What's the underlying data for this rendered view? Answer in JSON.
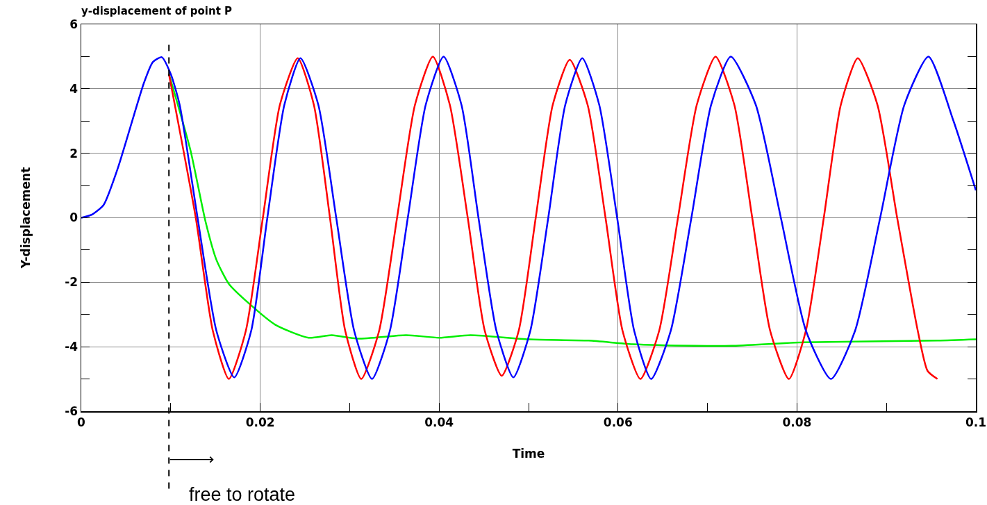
{
  "chart_data": {
    "type": "line",
    "title": "y-displacement of point P",
    "xlabel": "Time",
    "ylabel": "Y-displacement",
    "xlim": [
      0,
      0.1
    ],
    "ylim": [
      -6,
      6
    ],
    "xticks": [
      0,
      {
        "value": 0.01,
        "label": null
      },
      0.02,
      {
        "value": 0.03,
        "label": null
      },
      0.04,
      {
        "value": 0.05,
        "label": null
      },
      0.06,
      {
        "value": 0.07,
        "label": null
      },
      0.08,
      {
        "value": 0.09,
        "label": null
      },
      0.1
    ],
    "yticks": [
      -6,
      {
        "value": -5,
        "label": null
      },
      -4,
      {
        "value": -3,
        "label": null
      },
      -2,
      {
        "value": -1,
        "label": null
      },
      0,
      {
        "value": 1,
        "label": null
      },
      2,
      {
        "value": 3,
        "label": null
      },
      4,
      {
        "value": 5,
        "label": null
      },
      6
    ],
    "grid": true,
    "marker": "none",
    "line_style": "solid",
    "series": [
      {
        "color": "#00ee00",
        "x": [
          0.0098,
          0.0122,
          0.0139,
          0.0151,
          0.0165,
          0.0188,
          0.0217,
          0.0254,
          0.028,
          0.0309,
          0.0363,
          0.04,
          0.0435,
          0.05,
          0.0567,
          0.0616,
          0.0686,
          0.0727,
          0.0808,
          0.0957,
          0.1
        ],
        "values": [
          4.46,
          2.1,
          -0.13,
          -1.3,
          -2.05,
          -2.67,
          -3.32,
          -3.72,
          -3.64,
          -3.75,
          -3.64,
          -3.72,
          -3.64,
          -3.77,
          -3.81,
          -3.92,
          -3.97,
          -3.97,
          -3.86,
          -3.81,
          -3.77
        ]
      },
      {
        "color": "#ff0000",
        "x": [
          0.0098,
          0.0128,
          0.0147,
          0.0165,
          0.0184,
          0.0203,
          0.0222,
          0.0242,
          0.026,
          0.0278,
          0.0295,
          0.0313,
          0.0333,
          0.0353,
          0.0373,
          0.0393,
          0.0412,
          0.0432,
          0.0451,
          0.047,
          0.0489,
          0.0508,
          0.0527,
          0.0546,
          0.0566,
          0.0586,
          0.0605,
          0.0625,
          0.0646,
          0.0667,
          0.0688,
          0.0709,
          0.073,
          0.075,
          0.077,
          0.0791,
          0.081,
          0.083,
          0.0849,
          0.0868,
          0.089,
          0.0912,
          0.0935,
          0.0946,
          0.0957
        ],
        "values": [
          4.46,
          0,
          -3.5,
          -5,
          -3.5,
          0,
          3.5,
          4.95,
          3.5,
          0,
          -3.5,
          -5,
          -3.5,
          0,
          3.5,
          5,
          3.5,
          0,
          -3.5,
          -4.9,
          -3.5,
          0,
          3.5,
          4.9,
          3.5,
          0,
          -3.5,
          -5,
          -3.5,
          0,
          3.5,
          5,
          3.5,
          0,
          -3.5,
          -5,
          -3.5,
          0,
          3.5,
          4.95,
          3.5,
          0,
          -3.5,
          -4.75,
          -5
        ]
      },
      {
        "color": "#0000ff",
        "x": [
          0,
          0.0012,
          0.0025,
          0.0041,
          0.007,
          0.008,
          0.009,
          0.01,
          0.011,
          0.013,
          0.0151,
          0.0171,
          0.019,
          0.0208,
          0.0227,
          0.0245,
          0.0265,
          0.0285,
          0.0305,
          0.0325,
          0.0345,
          0.0365,
          0.0385,
          0.0405,
          0.0425,
          0.0444,
          0.0464,
          0.0483,
          0.0502,
          0.0522,
          0.0541,
          0.056,
          0.0579,
          0.0599,
          0.0618,
          0.0637,
          0.0659,
          0.0682,
          0.0704,
          0.0726,
          0.0754,
          0.0782,
          0.081,
          0.0838,
          0.0865,
          0.0893,
          0.092,
          0.0947,
          0.0975,
          0.1
        ],
        "values": [
          0,
          0.1,
          0.4,
          1.55,
          4.18,
          4.83,
          4.98,
          4.46,
          3.5,
          0,
          -3.5,
          -4.95,
          -3.5,
          0,
          3.5,
          4.95,
          3.5,
          0,
          -3.5,
          -5,
          -3.5,
          0,
          3.5,
          5,
          3.5,
          0,
          -3.5,
          -4.95,
          -3.5,
          0,
          3.5,
          4.95,
          3.5,
          0,
          -3.5,
          -5,
          -3.5,
          0,
          3.5,
          5,
          3.5,
          0,
          -3.5,
          -5,
          -3.5,
          0,
          3.5,
          5,
          3,
          0.85
        ]
      }
    ],
    "ref_lines": [
      {
        "axis": "x",
        "value": 0.0098,
        "line_style": "dashed",
        "color": "#000000"
      }
    ],
    "annotations": [
      "free to rotate"
    ]
  }
}
